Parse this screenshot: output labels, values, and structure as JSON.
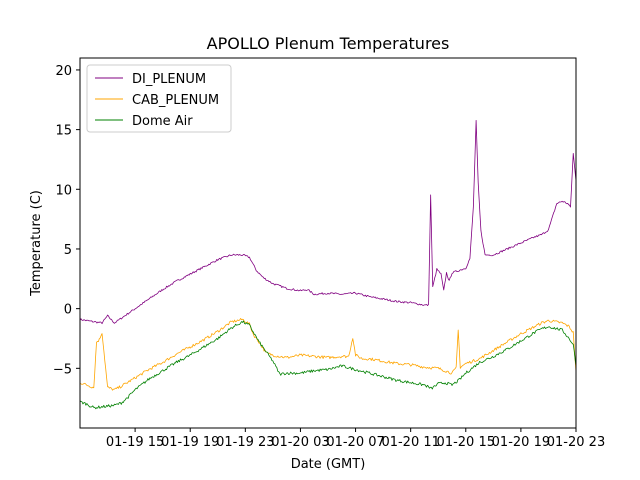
{
  "chart_data": {
    "type": "line",
    "title": "APOLLO Plenum Temperatures",
    "xlabel": "Date (GMT)",
    "ylabel": "Temperature (C)",
    "xlim": [
      11,
      47
    ],
    "ylim": [
      -10,
      21
    ],
    "x_unit": "hours since 2020-01-19 00:00 GMT",
    "x_ticks": [
      {
        "value": 15,
        "label": "01-19 15"
      },
      {
        "value": 19,
        "label": "01-19 19"
      },
      {
        "value": 23,
        "label": "01-19 23"
      },
      {
        "value": 27,
        "label": "01-20 03"
      },
      {
        "value": 31,
        "label": "01-20 07"
      },
      {
        "value": 35,
        "label": "01-20 11"
      },
      {
        "value": 39,
        "label": "01-20 15"
      },
      {
        "value": 43,
        "label": "01-20 19"
      },
      {
        "value": 47,
        "label": "01-20 23"
      }
    ],
    "y_ticks": [
      {
        "value": -5,
        "label": "−5"
      },
      {
        "value": 0,
        "label": "0"
      },
      {
        "value": 5,
        "label": "5"
      },
      {
        "value": 10,
        "label": "10"
      },
      {
        "value": 15,
        "label": "15"
      },
      {
        "value": 20,
        "label": "20"
      }
    ],
    "legend_position": "top-left",
    "series": [
      {
        "name": "DI_PLENUM",
        "color": "#800080",
        "x": [
          11,
          12,
          12.6,
          13,
          13.5,
          14,
          15,
          16,
          17,
          18,
          19,
          20,
          21,
          22,
          22.8,
          23.3,
          23.8,
          24.3,
          25,
          26,
          27,
          27.5,
          28,
          29,
          30,
          31,
          32,
          33,
          34,
          35,
          36,
          36.3,
          36.45,
          36.6,
          36.9,
          37.2,
          37.4,
          37.6,
          37.8,
          38,
          38.5,
          39,
          39.3,
          39.55,
          39.75,
          39.9,
          40.1,
          40.4,
          41,
          42,
          43,
          44,
          44.5,
          45,
          45.6,
          46,
          46.4,
          46.6,
          46.8,
          47
        ],
        "y": [
          -0.9,
          -1.1,
          -1.2,
          -0.6,
          -1.2,
          -0.8,
          0,
          0.8,
          1.6,
          2.3,
          2.9,
          3.5,
          4.1,
          4.5,
          4.5,
          4.3,
          3.2,
          2.6,
          2.1,
          1.7,
          1.5,
          1.6,
          1.2,
          1.3,
          1.2,
          1.3,
          1.0,
          0.8,
          0.6,
          0.5,
          0.3,
          0.3,
          9.5,
          1.8,
          3.3,
          2.9,
          1.5,
          3.0,
          2.3,
          3.0,
          3.2,
          3.4,
          4.2,
          8.5,
          15.7,
          10.5,
          6.5,
          4.5,
          4.5,
          5.0,
          5.5,
          6.0,
          6.2,
          6.6,
          8.8,
          9.0,
          8.8,
          8.5,
          13.0,
          10.7
        ]
      },
      {
        "name": "CAB_PLENUM",
        "color": "#ffa500",
        "x": [
          11,
          12,
          12.2,
          12.4,
          12.6,
          13,
          13.5,
          14,
          15,
          16,
          17,
          18,
          19,
          20,
          21,
          22,
          22.8,
          23.3,
          23.6,
          24,
          24.5,
          25,
          26,
          27,
          28,
          29,
          30,
          30.5,
          30.8,
          31,
          31.5,
          32,
          33,
          34,
          35,
          36,
          37,
          37.5,
          38,
          38.3,
          38.45,
          38.6,
          39,
          40,
          41,
          42,
          43,
          44,
          44.5,
          45,
          46,
          46.5,
          46.8,
          47
        ],
        "y": [
          -6.2,
          -6.6,
          -2.8,
          -2.6,
          -2.0,
          -6.6,
          -6.8,
          -6.5,
          -5.8,
          -5.1,
          -4.5,
          -3.8,
          -3.2,
          -2.6,
          -1.9,
          -1.1,
          -0.9,
          -1.3,
          -2.2,
          -2.8,
          -3.7,
          -3.9,
          -4.1,
          -3.9,
          -4.0,
          -4.1,
          -4.0,
          -4.0,
          -2.4,
          -3.9,
          -4.2,
          -4.2,
          -4.4,
          -4.6,
          -4.7,
          -4.9,
          -5.0,
          -5.2,
          -5.4,
          -5.0,
          -1.8,
          -4.9,
          -4.6,
          -4.2,
          -3.5,
          -2.8,
          -2.1,
          -1.5,
          -1.2,
          -1.0,
          -1.2,
          -1.5,
          -2.0,
          -5.3
        ]
      },
      {
        "name": "Dome Air",
        "color": "#008000",
        "x": [
          11,
          11.5,
          12,
          12.8,
          13.5,
          14,
          14.5,
          15,
          16,
          17,
          18,
          19,
          20,
          21,
          22,
          22.8,
          23.3,
          24,
          25,
          25.5,
          26,
          27,
          28,
          29,
          30,
          31,
          32,
          33,
          34,
          35,
          36,
          36.5,
          37,
          37.5,
          38,
          38.5,
          39,
          40,
          41,
          42,
          43,
          44,
          44.5,
          45,
          46,
          46.5,
          46.8,
          47
        ],
        "y": [
          -7.8,
          -8.0,
          -8.3,
          -8.2,
          -8.1,
          -7.9,
          -7.4,
          -6.8,
          -5.9,
          -5.2,
          -4.5,
          -3.9,
          -3.2,
          -2.5,
          -1.6,
          -1.1,
          -1.4,
          -2.8,
          -4.4,
          -5.5,
          -5.4,
          -5.4,
          -5.2,
          -5.1,
          -4.8,
          -5.1,
          -5.4,
          -5.7,
          -6.0,
          -6.2,
          -6.4,
          -6.7,
          -6.3,
          -6.2,
          -6.4,
          -6.0,
          -5.4,
          -4.5,
          -4.0,
          -3.4,
          -2.7,
          -2.0,
          -1.7,
          -1.5,
          -1.8,
          -2.5,
          -3.0,
          -4.8
        ]
      }
    ]
  }
}
